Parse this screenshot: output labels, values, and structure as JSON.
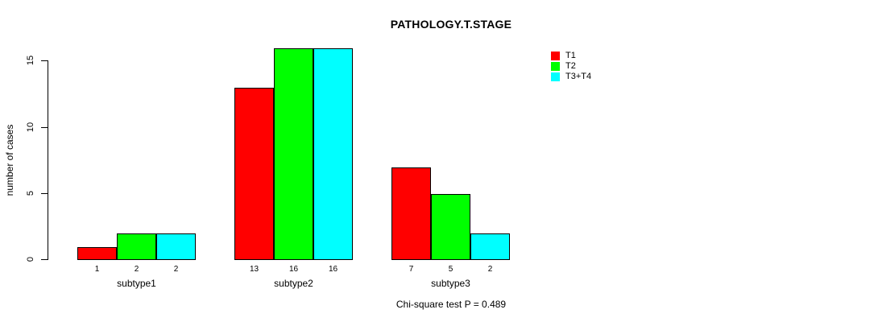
{
  "chart_data": {
    "type": "bar",
    "title": "PATHOLOGY.T.STAGE",
    "ylabel": "number of cases",
    "xlabel": "",
    "categories": [
      "subtype1",
      "subtype2",
      "subtype3"
    ],
    "series": [
      {
        "name": "T1",
        "color": "#ff0000",
        "values": [
          1,
          13,
          7
        ]
      },
      {
        "name": "T2",
        "color": "#00ff00",
        "values": [
          2,
          16,
          5
        ]
      },
      {
        "name": "T3+T4",
        "color": "#00ffff",
        "values": [
          2,
          16,
          2
        ]
      }
    ],
    "yticks": [
      0,
      5,
      10,
      15
    ],
    "ylim": [
      0,
      16.5
    ],
    "bar_value_labels": true,
    "grid": false,
    "legend_position": "top-right",
    "annotation": "Chi-square test P = 0.489",
    "colors": {
      "axis": "#000000",
      "text": "#000000",
      "background": "#ffffff"
    }
  }
}
